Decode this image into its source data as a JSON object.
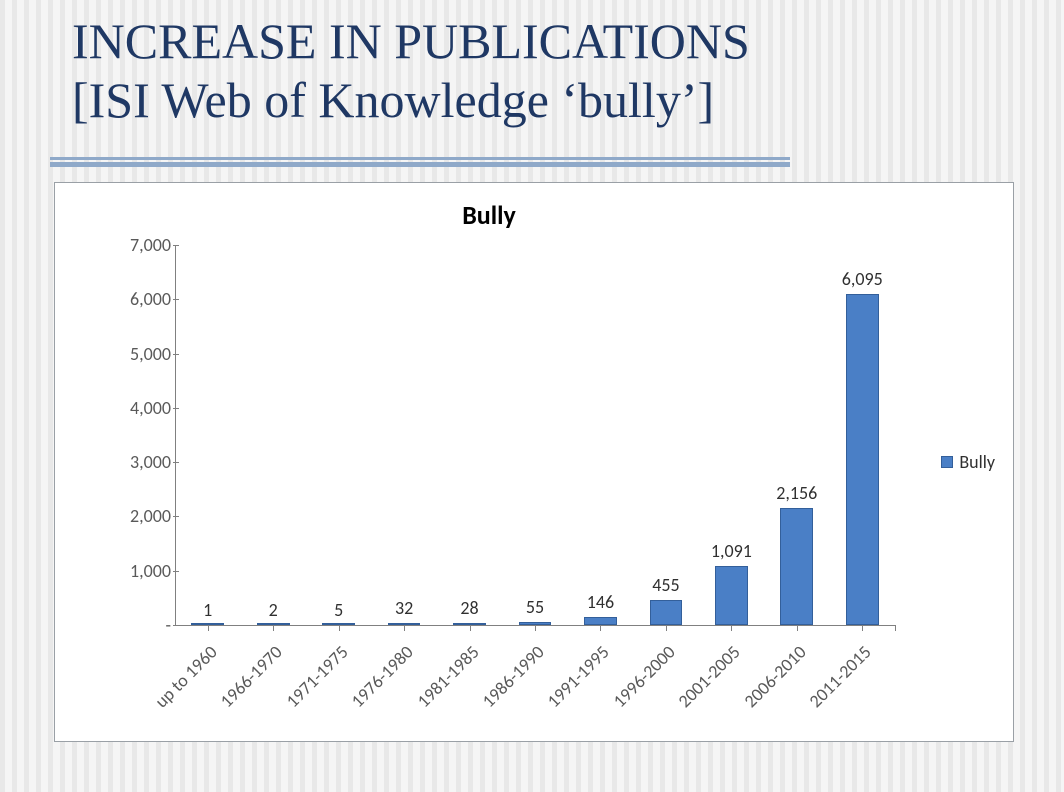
{
  "slide": {
    "title_line1": "INCREASE IN PUBLICATIONS",
    "title_line2": "[ISI Web of Knowledge ‘bully’]",
    "title_color": "#1f3864",
    "title_fontsize": 50,
    "underline_color": "#8fa9c9",
    "background_stripes": {
      "color_a": "#e8e8e8",
      "color_b": "#f5f5f5"
    }
  },
  "chart": {
    "type": "bar",
    "title": "Bully",
    "title_fontsize": 26,
    "title_fontweight": "bold",
    "font_family": "Calibri",
    "axis_label_fontsize": 18,
    "value_label_fontsize": 18,
    "background_color": "#ffffff",
    "border_color": "#9aa0a6",
    "axis_color": "#808080",
    "tick_color": "#808080",
    "label_color": "#595959",
    "bar_fill": "#4a7fc6",
    "bar_border": "#335f9a",
    "bar_width_ratio": 0.5,
    "x_label_rotation_deg": -45,
    "y": {
      "min": 0,
      "max": 7000,
      "step": 1000,
      "tick_labels": [
        "-",
        "1,000",
        "2,000",
        "3,000",
        "4,000",
        "5,000",
        "6,000",
        "7,000"
      ]
    },
    "categories": [
      "up to 1960",
      "1966-1970",
      "1971-1975",
      "1976-1980",
      "1981-1985",
      "1986-1990",
      "1991-1995",
      "1996-2000",
      "2001-2005",
      "2006-2010",
      "2011-2015"
    ],
    "values": [
      1,
      2,
      5,
      32,
      28,
      55,
      146,
      455,
      1091,
      2156,
      6095
    ],
    "value_labels": [
      "1",
      "2",
      "5",
      "32",
      "28",
      "55",
      "146",
      "455",
      "1,091",
      "2,156",
      "6,095"
    ],
    "legend": {
      "label": "Bully",
      "swatch_color": "#4a7fc6"
    }
  }
}
